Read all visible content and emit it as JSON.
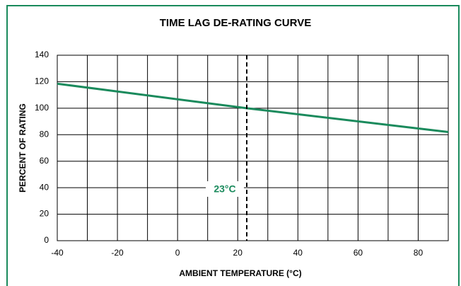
{
  "chart_data": {
    "type": "line",
    "title": "TIME LAG DE-RATING CURVE",
    "x_label": "AMBIENT TEMPERATURE (°C)",
    "y_label": "PERCENT OF RATING",
    "x": [
      -40,
      23,
      90
    ],
    "series": [
      {
        "name": "Time lag de-rating",
        "color": "#1a8a5c",
        "values": [
          118.5,
          100,
          82
        ]
      }
    ],
    "xlim": [
      -40,
      90
    ],
    "ylim": [
      0,
      140
    ],
    "xticks": [
      -40,
      -20,
      0,
      20,
      40,
      60,
      80
    ],
    "x_minor_grid": [
      -30,
      -10,
      10,
      30,
      50,
      70,
      90
    ],
    "yticks": [
      0,
      20,
      40,
      60,
      80,
      100,
      120,
      140
    ],
    "grid": true,
    "annotations": [
      {
        "x": 23,
        "label": "23°C",
        "color": "#1a8a5c"
      }
    ]
  }
}
